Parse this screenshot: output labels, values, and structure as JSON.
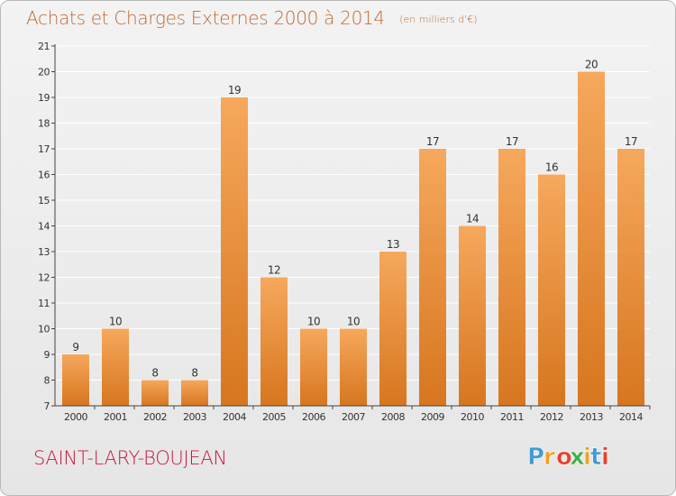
{
  "page": {
    "title": "Achats et Charges Externes 2000 à 2014",
    "subtitle": "(en milliers d'€)",
    "commune": "SAINT-LARY-BOUJEAN",
    "brand": "Proxiti",
    "brand_letters": [
      {
        "ch": "P",
        "color": "#3f9ad6"
      },
      {
        "ch": "r",
        "color": "#f0a021"
      },
      {
        "ch": "o",
        "color": "#e8412d"
      },
      {
        "ch": "x",
        "color": "#40ae49"
      },
      {
        "ch": "i",
        "color": "#f0a021"
      },
      {
        "ch": "t",
        "color": "#3f9ad6"
      },
      {
        "ch": "i",
        "color": "#e8412d"
      }
    ]
  },
  "colors": {
    "bar_light": "#f6a85c",
    "bar_dark": "#d7761f",
    "title": "#c06a31",
    "commune": "#c8183f",
    "grid": "#ffffff",
    "axis": "#444444"
  },
  "chart_data": {
    "type": "bar",
    "title": "Achats et Charges Externes 2000 à 2014",
    "subtitle": "(en milliers d'€)",
    "xlabel": "",
    "ylabel": "",
    "categories": [
      "2000",
      "2001",
      "2002",
      "2003",
      "2004",
      "2005",
      "2006",
      "2007",
      "2008",
      "2009",
      "2010",
      "2011",
      "2012",
      "2013",
      "2014"
    ],
    "values": [
      9,
      10,
      8,
      8,
      19,
      12,
      10,
      10,
      13,
      17,
      14,
      17,
      16,
      20,
      17
    ],
    "ylim": [
      7,
      21
    ],
    "yticks": [
      7,
      8,
      9,
      10,
      11,
      12,
      13,
      14,
      15,
      16,
      17,
      18,
      19,
      20,
      21
    ],
    "grid": true,
    "legend": "none"
  }
}
